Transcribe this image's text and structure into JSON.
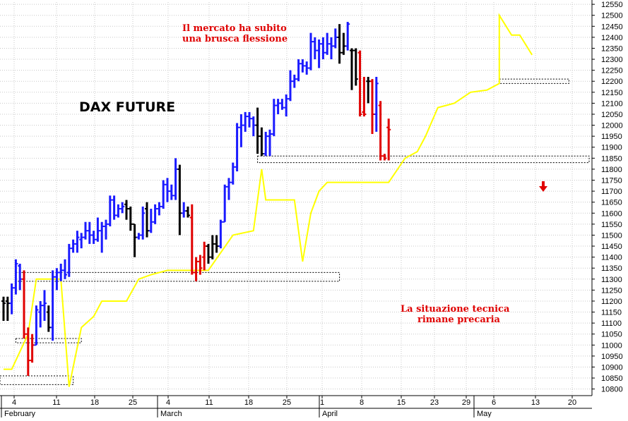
{
  "chart_data": {
    "type": "ohlc",
    "title": "DAX FUTURE",
    "annotations": [
      {
        "lines": [
          "Il mercato ha subito",
          "una brusca flessione"
        ],
        "color": "#e00000"
      },
      {
        "lines": [
          "La situazione tecnica",
          "rimane precaria"
        ],
        "color": "#e00000"
      }
    ],
    "y_axis": {
      "ylim": [
        10770,
        12560
      ],
      "ticks": [
        10800,
        10850,
        10900,
        10950,
        11000,
        11050,
        11100,
        11150,
        11200,
        11250,
        11300,
        11350,
        11400,
        11450,
        11500,
        11550,
        11600,
        11650,
        11700,
        11750,
        11800,
        11850,
        11900,
        11950,
        12000,
        12050,
        12100,
        12150,
        12200,
        12250,
        12300,
        12350,
        12400,
        12450,
        12500,
        12550
      ],
      "position": "right",
      "grid": true
    },
    "x_axis": {
      "tick_labels": [
        "4",
        "11",
        "18",
        "25",
        "4",
        "11",
        "18",
        "25",
        "1",
        "8",
        "15",
        "23",
        "29",
        "6",
        "13",
        "20"
      ],
      "month_labels": [
        "February",
        "March",
        "April",
        "May"
      ]
    },
    "colors": {
      "up": "#1a1aff",
      "down": "#e00000",
      "neutral": "#000000",
      "trendline": "#ffff00",
      "support": "#000000"
    },
    "bars": [
      {
        "o": 11200,
        "h": 11220,
        "l": 11110,
        "c": 11190,
        "color": "black"
      },
      {
        "o": 11200,
        "h": 11220,
        "l": 11110,
        "c": 11190,
        "color": "black"
      },
      {
        "o": 11190,
        "h": 11280,
        "l": 11140,
        "c": 11260,
        "color": "blue"
      },
      {
        "o": 11260,
        "h": 11390,
        "l": 11230,
        "c": 11370,
        "color": "blue"
      },
      {
        "o": 11360,
        "h": 11370,
        "l": 11250,
        "c": 11300,
        "color": "blue"
      },
      {
        "o": 11300,
        "h": 11340,
        "l": 11030,
        "c": 11050,
        "color": "red"
      },
      {
        "o": 11050,
        "h": 11080,
        "l": 10860,
        "c": 10930,
        "color": "red"
      },
      {
        "o": 10930,
        "h": 11050,
        "l": 10920,
        "c": 11000,
        "color": "red"
      },
      {
        "o": 11000,
        "h": 11180,
        "l": 11000,
        "c": 11160,
        "color": "blue"
      },
      {
        "o": 11150,
        "h": 11200,
        "l": 11080,
        "c": 11180,
        "color": "blue"
      },
      {
        "o": 11180,
        "h": 11250,
        "l": 11110,
        "c": 11190,
        "color": "blue"
      },
      {
        "o": 11150,
        "h": 11180,
        "l": 11060,
        "c": 11080,
        "color": "black"
      },
      {
        "o": 11080,
        "h": 11340,
        "l": 11020,
        "c": 11310,
        "color": "blue"
      },
      {
        "o": 11310,
        "h": 11350,
        "l": 11250,
        "c": 11330,
        "color": "blue"
      },
      {
        "o": 11330,
        "h": 11370,
        "l": 11290,
        "c": 11340,
        "color": "blue"
      },
      {
        "o": 11340,
        "h": 11390,
        "l": 11300,
        "c": 11320,
        "color": "blue"
      },
      {
        "o": 11330,
        "h": 11460,
        "l": 11310,
        "c": 11440,
        "color": "blue"
      },
      {
        "o": 11440,
        "h": 11480,
        "l": 11420,
        "c": 11460,
        "color": "blue"
      },
      {
        "o": 11460,
        "h": 11520,
        "l": 11420,
        "c": 11490,
        "color": "blue"
      },
      {
        "o": 11480,
        "h": 11510,
        "l": 11440,
        "c": 11490,
        "color": "blue"
      },
      {
        "o": 11490,
        "h": 11560,
        "l": 11480,
        "c": 11520,
        "color": "blue"
      },
      {
        "o": 11520,
        "h": 11560,
        "l": 11460,
        "c": 11500,
        "color": "blue"
      },
      {
        "o": 11500,
        "h": 11520,
        "l": 11460,
        "c": 11480,
        "color": "blue"
      },
      {
        "o": 11480,
        "h": 11580,
        "l": 11470,
        "c": 11520,
        "color": "blue"
      },
      {
        "o": 11520,
        "h": 11560,
        "l": 11420,
        "c": 11540,
        "color": "blue"
      },
      {
        "o": 11540,
        "h": 11570,
        "l": 11480,
        "c": 11550,
        "color": "blue"
      },
      {
        "o": 11550,
        "h": 11680,
        "l": 11540,
        "c": 11660,
        "color": "blue"
      },
      {
        "o": 11660,
        "h": 11680,
        "l": 11570,
        "c": 11590,
        "color": "blue"
      },
      {
        "o": 11590,
        "h": 11640,
        "l": 11580,
        "c": 11620,
        "color": "blue"
      },
      {
        "o": 11620,
        "h": 11650,
        "l": 11600,
        "c": 11630,
        "color": "blue"
      },
      {
        "o": 11640,
        "h": 11660,
        "l": 11570,
        "c": 11620,
        "color": "black"
      },
      {
        "o": 11620,
        "h": 11630,
        "l": 11520,
        "c": 11550,
        "color": "black"
      },
      {
        "o": 11550,
        "h": 11550,
        "l": 11400,
        "c": 11490,
        "color": "black"
      },
      {
        "o": 11490,
        "h": 11510,
        "l": 11480,
        "c": 11500,
        "color": "blue"
      },
      {
        "o": 11500,
        "h": 11630,
        "l": 11480,
        "c": 11600,
        "color": "blue"
      },
      {
        "o": 11620,
        "h": 11650,
        "l": 11490,
        "c": 11520,
        "color": "black"
      },
      {
        "o": 11520,
        "h": 11620,
        "l": 11510,
        "c": 11560,
        "color": "blue"
      },
      {
        "o": 11560,
        "h": 11640,
        "l": 11550,
        "c": 11620,
        "color": "blue"
      },
      {
        "o": 11620,
        "h": 11650,
        "l": 11590,
        "c": 11630,
        "color": "blue"
      },
      {
        "o": 11630,
        "h": 11750,
        "l": 11620,
        "c": 11730,
        "color": "blue"
      },
      {
        "o": 11730,
        "h": 11760,
        "l": 11650,
        "c": 11700,
        "color": "blue"
      },
      {
        "o": 11700,
        "h": 11730,
        "l": 11660,
        "c": 11680,
        "color": "blue"
      },
      {
        "o": 11680,
        "h": 11850,
        "l": 11660,
        "c": 11800,
        "color": "blue"
      },
      {
        "o": 11800,
        "h": 11820,
        "l": 11500,
        "c": 11600,
        "color": "black"
      },
      {
        "o": 11600,
        "h": 11650,
        "l": 11580,
        "c": 11610,
        "color": "blue"
      },
      {
        "o": 11610,
        "h": 11630,
        "l": 11580,
        "c": 11590,
        "color": "black"
      },
      {
        "o": 11580,
        "h": 11640,
        "l": 11320,
        "c": 11330,
        "color": "red"
      },
      {
        "o": 11330,
        "h": 11400,
        "l": 11290,
        "c": 11380,
        "color": "red"
      },
      {
        "o": 11380,
        "h": 11410,
        "l": 11320,
        "c": 11350,
        "color": "red"
      },
      {
        "o": 11400,
        "h": 11470,
        "l": 11340,
        "c": 11450,
        "color": "red"
      },
      {
        "o": 11450,
        "h": 11460,
        "l": 11370,
        "c": 11400,
        "color": "black"
      },
      {
        "o": 11400,
        "h": 11500,
        "l": 11390,
        "c": 11460,
        "color": "black"
      },
      {
        "o": 11460,
        "h": 11500,
        "l": 11420,
        "c": 11450,
        "color": "black"
      },
      {
        "o": 11450,
        "h": 11570,
        "l": 11440,
        "c": 11560,
        "color": "blue"
      },
      {
        "o": 11560,
        "h": 11730,
        "l": 11560,
        "c": 11720,
        "color": "blue"
      },
      {
        "o": 11720,
        "h": 11760,
        "l": 11660,
        "c": 11740,
        "color": "blue"
      },
      {
        "o": 11740,
        "h": 11830,
        "l": 11730,
        "c": 11810,
        "color": "blue"
      },
      {
        "o": 11810,
        "h": 12010,
        "l": 11790,
        "c": 11990,
        "color": "blue"
      },
      {
        "o": 11990,
        "h": 12050,
        "l": 11900,
        "c": 12000,
        "color": "blue"
      },
      {
        "o": 12000,
        "h": 12060,
        "l": 11970,
        "c": 12040,
        "color": "blue"
      },
      {
        "o": 12040,
        "h": 12060,
        "l": 11990,
        "c": 12030,
        "color": "blue"
      },
      {
        "o": 12030,
        "h": 12040,
        "l": 11950,
        "c": 12000,
        "color": "blue"
      },
      {
        "o": 12000,
        "h": 12080,
        "l": 11870,
        "c": 11950,
        "color": "black"
      },
      {
        "o": 11950,
        "h": 11990,
        "l": 11860,
        "c": 11870,
        "color": "black"
      },
      {
        "o": 11870,
        "h": 11970,
        "l": 11860,
        "c": 11950,
        "color": "blue"
      },
      {
        "o": 11950,
        "h": 11980,
        "l": 11860,
        "c": 11960,
        "color": "blue"
      },
      {
        "o": 11960,
        "h": 12120,
        "l": 11950,
        "c": 12090,
        "color": "blue"
      },
      {
        "o": 12090,
        "h": 12120,
        "l": 12050,
        "c": 12100,
        "color": "blue"
      },
      {
        "o": 12100,
        "h": 12120,
        "l": 12070,
        "c": 12080,
        "color": "blue"
      },
      {
        "o": 12080,
        "h": 12140,
        "l": 12040,
        "c": 12120,
        "color": "blue"
      },
      {
        "o": 12120,
        "h": 12250,
        "l": 12110,
        "c": 12200,
        "color": "blue"
      },
      {
        "o": 12200,
        "h": 12230,
        "l": 12170,
        "c": 12210,
        "color": "blue"
      },
      {
        "o": 12210,
        "h": 12300,
        "l": 12200,
        "c": 12280,
        "color": "blue"
      },
      {
        "o": 12280,
        "h": 12300,
        "l": 12240,
        "c": 12270,
        "color": "blue"
      },
      {
        "o": 12270,
        "h": 12290,
        "l": 12230,
        "c": 12260,
        "color": "blue"
      },
      {
        "o": 12260,
        "h": 12420,
        "l": 12250,
        "c": 12380,
        "color": "blue"
      },
      {
        "o": 12380,
        "h": 12400,
        "l": 12300,
        "c": 12340,
        "color": "blue"
      },
      {
        "o": 12340,
        "h": 12390,
        "l": 12260,
        "c": 12370,
        "color": "blue"
      },
      {
        "o": 12370,
        "h": 12400,
        "l": 12300,
        "c": 12330,
        "color": "blue"
      },
      {
        "o": 12330,
        "h": 12420,
        "l": 12320,
        "c": 12370,
        "color": "blue"
      },
      {
        "o": 12370,
        "h": 12400,
        "l": 12300,
        "c": 12360,
        "color": "blue"
      },
      {
        "o": 12360,
        "h": 12440,
        "l": 12350,
        "c": 12400,
        "color": "blue"
      },
      {
        "o": 12400,
        "h": 12460,
        "l": 12280,
        "c": 12330,
        "color": "black"
      },
      {
        "o": 12330,
        "h": 12420,
        "l": 12320,
        "c": 12360,
        "color": "black"
      },
      {
        "o": 12360,
        "h": 12470,
        "l": 12340,
        "c": 12460,
        "color": "blue"
      },
      {
        "o": 12340,
        "h": 12350,
        "l": 12160,
        "c": 12340,
        "color": "black"
      },
      {
        "o": 12340,
        "h": 12350,
        "l": 12180,
        "c": 12210,
        "color": "black"
      },
      {
        "o": 12330,
        "h": 12340,
        "l": 12040,
        "c": 12050,
        "color": "red"
      },
      {
        "o": 12060,
        "h": 12220,
        "l": 12040,
        "c": 12050,
        "color": "red"
      },
      {
        "o": 12200,
        "h": 12220,
        "l": 12100,
        "c": 12200,
        "color": "black"
      },
      {
        "o": 12200,
        "h": 12210,
        "l": 11960,
        "c": 12050,
        "color": "red"
      },
      {
        "o": 12050,
        "h": 12220,
        "l": 11970,
        "c": 12190,
        "color": "blue"
      },
      {
        "o": 12090,
        "h": 12110,
        "l": 11840,
        "c": 11860,
        "color": "red"
      },
      {
        "o": 11860,
        "h": 11870,
        "l": 11840,
        "c": 11850,
        "color": "red"
      },
      {
        "o": 11990,
        "h": 12030,
        "l": 11840,
        "c": 11980,
        "color": "red"
      }
    ],
    "trendline": [
      {
        "i": 0,
        "y": 10890
      },
      {
        "i": 2,
        "y": 10890
      },
      {
        "i": 6,
        "y": 11050
      },
      {
        "i": 8,
        "y": 11300
      },
      {
        "i": 14,
        "y": 11300
      },
      {
        "i": 16,
        "y": 10810
      },
      {
        "i": 19,
        "y": 11080
      },
      {
        "i": 22,
        "y": 11130
      },
      {
        "i": 24,
        "y": 11200
      },
      {
        "i": 30,
        "y": 11200
      },
      {
        "i": 33,
        "y": 11300
      },
      {
        "i": 36,
        "y": 11320
      },
      {
        "i": 40,
        "y": 11340
      },
      {
        "i": 50,
        "y": 11340
      },
      {
        "i": 56,
        "y": 11500
      },
      {
        "i": 61,
        "y": 11520
      },
      {
        "i": 63,
        "y": 11800
      },
      {
        "i": 64,
        "y": 11660
      },
      {
        "i": 71,
        "y": 11660
      },
      {
        "i": 73,
        "y": 11380
      },
      {
        "i": 75,
        "y": 11600
      },
      {
        "i": 77,
        "y": 11700
      },
      {
        "i": 79,
        "y": 11740
      },
      {
        "i": 94,
        "y": 11740
      },
      {
        "i": 98,
        "y": 11850
      },
      {
        "i": 101,
        "y": 11880
      },
      {
        "i": 103,
        "y": 11950
      },
      {
        "i": 106,
        "y": 12080
      },
      {
        "i": 110,
        "y": 12100
      },
      {
        "i": 114,
        "y": 12150
      },
      {
        "i": 118,
        "y": 12160
      },
      {
        "i": 121,
        "y": 12190
      },
      {
        "i": 121,
        "y": 12500
      },
      {
        "i": 122,
        "y": 12470
      },
      {
        "i": 124,
        "y": 12410
      },
      {
        "i": 126,
        "y": 12410
      },
      {
        "i": 129,
        "y": 12320
      }
    ],
    "support_bands": [
      {
        "x0": 0,
        "x1": 17,
        "lower": 10820,
        "upper": 10860
      },
      {
        "x0": 3,
        "x1": 19,
        "lower": 11010,
        "upper": 11030
      },
      {
        "x0": 3,
        "x1": 82,
        "lower": 11290,
        "upper": 11330
      },
      {
        "x0": 62,
        "x1": 144,
        "lower": 11830,
        "upper": 11860
      },
      {
        "x0": 121,
        "x1": 138,
        "lower": 12190,
        "upper": 12210
      }
    ],
    "arrow": {
      "direction": "down",
      "color": "#e00000"
    }
  }
}
